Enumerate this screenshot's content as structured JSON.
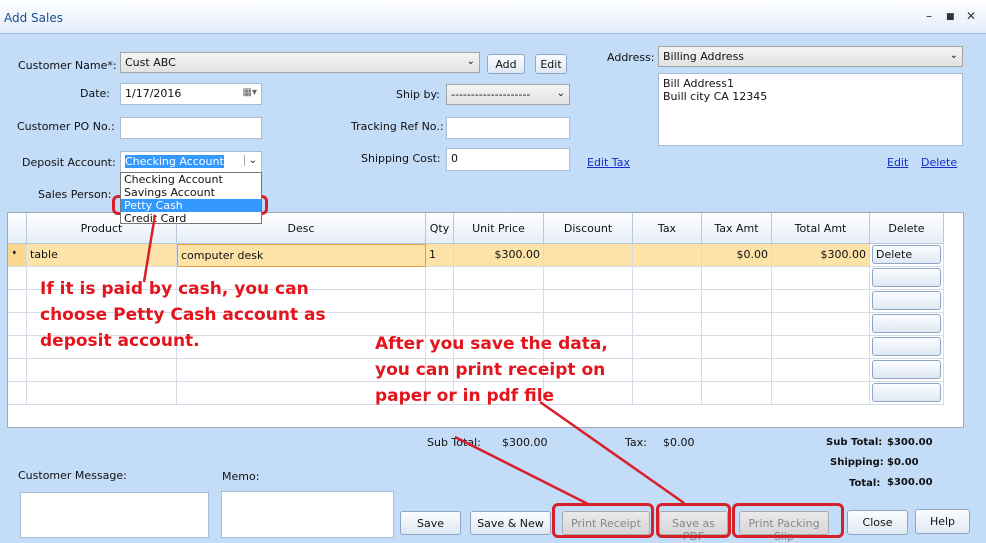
{
  "window": {
    "title": "Add Sales",
    "minimize": "–",
    "maximize": "■",
    "close": "✕"
  },
  "form": {
    "customer_name_label": "Customer Name*:",
    "customer_name": "Cust ABC",
    "add": "Add",
    "edit": "Edit",
    "date_label": "Date:",
    "date": "1/17/2016",
    "ship_by_label": "Ship by:",
    "ship_by": "--------------------",
    "po_label": "Customer PO No.:",
    "po": "",
    "tracking_label": "Tracking Ref No.:",
    "tracking": "",
    "deposit_label": "Deposit Account:",
    "deposit": "Checking Account",
    "deposit_options": [
      "Checking Account",
      "Savings Account",
      "Petty Cash",
      "Credit Card"
    ],
    "shipping_cost_label": "Shipping Cost:",
    "shipping_cost": "0",
    "edit_tax": "Edit Tax",
    "sales_person_label": "Sales Person:",
    "address_label": "Address:",
    "address_type": "Billing Address",
    "address_line1": "Bill Address1",
    "address_line2": "Buill city  CA  12345",
    "address_edit": "Edit",
    "address_delete": "Delete"
  },
  "grid": {
    "columns": [
      "Product",
      "Desc",
      "Qty",
      "Unit Price",
      "Discount",
      "Tax",
      "Tax Amt",
      "Total Amt",
      "Delete"
    ],
    "rows": [
      {
        "product": "table",
        "desc": "computer desk",
        "qty": "1",
        "unit_price": "$300.00",
        "discount": "",
        "tax": "",
        "tax_amt": "$0.00",
        "total_amt": "$300.00",
        "delete": "Delete"
      }
    ]
  },
  "totals": {
    "sub_total_label": "Sub Total:",
    "sub_total": "$300.00",
    "tax_label": "Tax:",
    "tax": "$0.00",
    "r_sub_total_label": "Sub Total:",
    "r_sub_total": "$300.00",
    "shipping_label": "Shipping:",
    "shipping": "$0.00",
    "total_label": "Total:",
    "total": "$300.00"
  },
  "bottom": {
    "customer_message_label": "Customer Message:",
    "memo_label": "Memo:"
  },
  "buttons": {
    "save": "Save",
    "save_new": "Save & New",
    "print_receipt": "Print Receipt",
    "save_pdf": "Save as PDF",
    "print_packing": "Print Packing Slip",
    "close": "Close",
    "help": "Help"
  },
  "annotations": {
    "cash_1": "If it is paid by cash, you can",
    "cash_2": "choose Petty Cash account as",
    "cash_3": "deposit account.",
    "print_1": "After you save the data,",
    "print_2": "you can print receipt on",
    "print_3": "paper or in pdf file",
    "color": "#e3141c"
  }
}
